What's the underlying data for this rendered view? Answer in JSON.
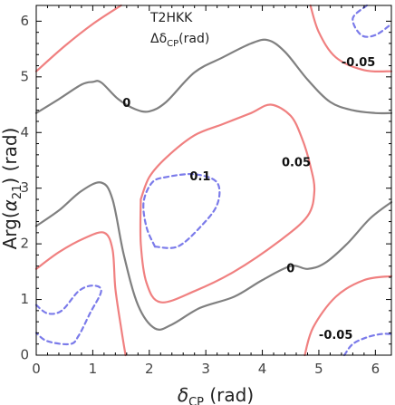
{
  "chart_data": {
    "type": "contour",
    "title_lines": [
      "T2HKK",
      "Δδ",
      "CP",
      "(rad)"
    ],
    "x_label": {
      "main": "δ",
      "sub": "CP",
      "suffix": "  (rad)"
    },
    "y_label": {
      "prefix": "Arg(",
      "alpha": "α",
      "sub": "21",
      "suffix": ")  (rad)"
    },
    "x_ticks": [
      "0",
      "1",
      "2",
      "3",
      "4",
      "5",
      "6"
    ],
    "y_ticks": [
      "0",
      "1",
      "2",
      "3",
      "4",
      "5",
      "6"
    ],
    "x_range": [
      0,
      6.283
    ],
    "y_range": [
      0,
      6.283
    ],
    "grid": false,
    "colors": {
      "level_0": "#808080",
      "level_pm005": "#f08080",
      "level_pm01": "#7b7bea",
      "frame": "#000000"
    },
    "contours": [
      {
        "level": "0",
        "color_key": "level_0",
        "dash": "solid",
        "segments": [
          [
            [
              0,
              4.35
            ],
            [
              0.4,
              4.6
            ],
            [
              0.8,
              4.86
            ],
            [
              1.0,
              4.91
            ],
            [
              1.15,
              4.9
            ],
            [
              1.45,
              4.6
            ],
            [
              1.75,
              4.42
            ],
            [
              2.0,
              4.38
            ],
            [
              2.3,
              4.55
            ],
            [
              2.8,
              5.08
            ],
            [
              3.3,
              5.35
            ],
            [
              3.8,
              5.6
            ],
            [
              4.1,
              5.66
            ],
            [
              4.4,
              5.45
            ],
            [
              4.8,
              4.95
            ],
            [
              5.2,
              4.55
            ],
            [
              5.6,
              4.4
            ],
            [
              6.0,
              4.35
            ],
            [
              6.283,
              4.35
            ]
          ],
          [
            [
              0,
              2.32
            ],
            [
              0.4,
              2.6
            ],
            [
              0.8,
              2.95
            ],
            [
              1.15,
              3.1
            ],
            [
              1.35,
              2.8
            ],
            [
              1.55,
              1.8
            ],
            [
              1.8,
              0.9
            ],
            [
              2.1,
              0.48
            ],
            [
              2.4,
              0.55
            ],
            [
              2.9,
              0.85
            ],
            [
              3.5,
              1.05
            ],
            [
              4.0,
              1.35
            ],
            [
              4.5,
              1.6
            ],
            [
              4.8,
              1.55
            ],
            [
              5.1,
              1.65
            ],
            [
              5.5,
              2.0
            ],
            [
              5.9,
              2.45
            ],
            [
              6.283,
              2.75
            ]
          ]
        ]
      },
      {
        "level": "0.05",
        "color_key": "level_pm005",
        "dash": "solid",
        "segments": [
          [
            [
              0,
              5.1
            ],
            [
              0.5,
              5.55
            ],
            [
              1.0,
              5.95
            ],
            [
              1.5,
              6.283
            ]
          ],
          [
            [
              1.85,
              2.8
            ],
            [
              2.0,
              3.2
            ],
            [
              2.3,
              3.55
            ],
            [
              2.8,
              3.95
            ],
            [
              3.3,
              4.15
            ],
            [
              3.8,
              4.35
            ],
            [
              4.15,
              4.5
            ],
            [
              4.5,
              4.3
            ],
            [
              4.7,
              3.9
            ],
            [
              4.85,
              3.4
            ],
            [
              4.92,
              2.95
            ],
            [
              4.8,
              2.5
            ],
            [
              4.3,
              2.05
            ],
            [
              3.5,
              1.5
            ],
            [
              2.8,
              1.15
            ],
            [
              2.2,
              0.95
            ],
            [
              1.95,
              1.3
            ],
            [
              1.85,
              2.0
            ],
            [
              1.85,
              2.8
            ]
          ],
          [
            [
              0,
              1.55
            ],
            [
              0.4,
              1.85
            ],
            [
              0.85,
              2.1
            ],
            [
              1.2,
              2.2
            ],
            [
              1.35,
              1.9
            ],
            [
              1.4,
              1.2
            ],
            [
              1.5,
              0.5
            ],
            [
              1.58,
              0
            ]
          ]
        ]
      },
      {
        "level": "-0.05",
        "color_key": "level_pm005",
        "dash": "solid",
        "segments": [
          [
            [
              4.85,
              6.283
            ],
            [
              5.0,
              5.8
            ],
            [
              5.3,
              5.35
            ],
            [
              5.8,
              5.12
            ],
            [
              6.283,
              5.1
            ]
          ],
          [
            [
              4.75,
              0
            ],
            [
              4.9,
              0.5
            ],
            [
              5.3,
              1.05
            ],
            [
              5.8,
              1.35
            ],
            [
              6.283,
              1.42
            ]
          ]
        ]
      },
      {
        "level": "0.1",
        "color_key": "level_pm01",
        "dash": "dashed",
        "segments": [
          [
            [
              2.1,
              1.95
            ],
            [
              1.95,
              2.3
            ],
            [
              1.9,
              2.75
            ],
            [
              2.05,
              3.1
            ],
            [
              2.3,
              3.2
            ],
            [
              2.8,
              3.25
            ],
            [
              3.2,
              3.1
            ],
            [
              3.2,
              2.7
            ],
            [
              2.9,
              2.3
            ],
            [
              2.5,
              1.95
            ],
            [
              2.1,
              1.95
            ]
          ]
        ]
      },
      {
        "level": "-0.1",
        "color_key": "level_pm01",
        "dash": "dashed",
        "segments": [
          [
            [
              5.85,
              6.283
            ],
            [
              5.6,
              6.05
            ],
            [
              5.75,
              5.75
            ],
            [
              6.0,
              5.75
            ],
            [
              6.283,
              5.95
            ]
          ],
          [
            [
              0,
              0.9
            ],
            [
              0.2,
              0.75
            ],
            [
              0.45,
              0.8
            ],
            [
              0.75,
              1.15
            ],
            [
              1.0,
              1.25
            ],
            [
              1.15,
              1.15
            ],
            [
              0.95,
              0.75
            ],
            [
              0.75,
              0.35
            ],
            [
              0.6,
              0.2
            ],
            [
              0.2,
              0.25
            ],
            [
              0,
              0.4
            ]
          ],
          [
            [
              5.45,
              0
            ],
            [
              5.6,
              0.2
            ],
            [
              5.85,
              0.32
            ],
            [
              6.1,
              0.38
            ],
            [
              6.283,
              0.38
            ]
          ]
        ]
      }
    ],
    "labels": [
      {
        "text": "0",
        "x": 1.6,
        "y": 4.52
      },
      {
        "text": "0.1",
        "x": 2.9,
        "y": 3.2
      },
      {
        "text": "0.05",
        "x": 4.6,
        "y": 3.45
      },
      {
        "text": "0",
        "x": 4.5,
        "y": 1.55
      },
      {
        "text": "-0.05",
        "x": 5.7,
        "y": 5.25
      },
      {
        "text": "-0.05",
        "x": 5.3,
        "y": 0.35
      }
    ]
  }
}
